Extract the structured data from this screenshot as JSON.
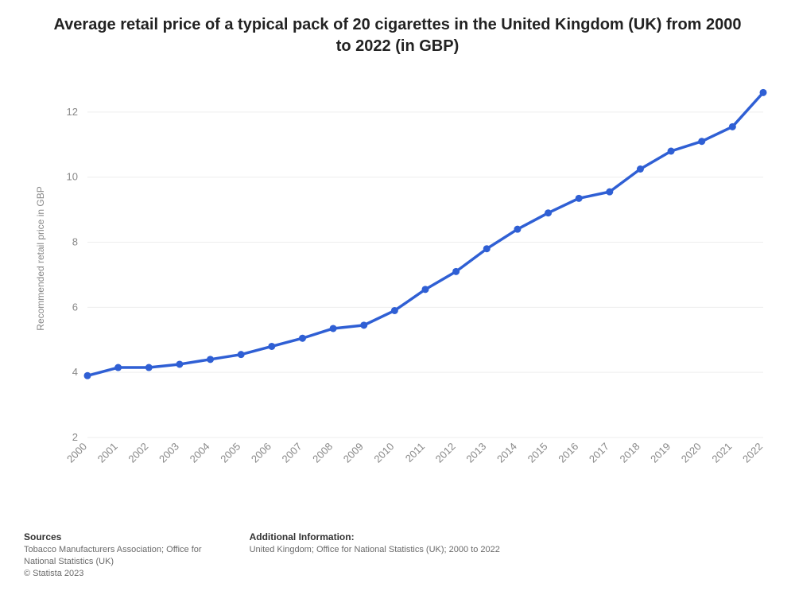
{
  "title": "Average retail price of a typical pack of 20 cigarettes in the United Kingdom (UK) from 2000 to 2022 (in GBP)",
  "chart": {
    "type": "line",
    "x_labels": [
      "2000",
      "2001",
      "2002",
      "2003",
      "2004",
      "2005",
      "2006",
      "2007",
      "2008",
      "2009",
      "2010",
      "2011",
      "2012",
      "2013",
      "2014",
      "2015",
      "2016",
      "2017",
      "2018",
      "2019",
      "2020",
      "2021",
      "2022"
    ],
    "values": [
      3.9,
      4.15,
      4.15,
      4.25,
      4.4,
      4.55,
      4.8,
      5.05,
      5.35,
      5.45,
      5.9,
      6.55,
      7.1,
      7.8,
      8.4,
      8.9,
      9.35,
      9.55,
      10.25,
      10.8,
      11.1,
      11.55,
      12.6
    ],
    "ylim": [
      2,
      13
    ],
    "yticks": [
      2,
      4,
      6,
      8,
      10,
      12
    ],
    "ylabel": "Recommended retail price in GBP",
    "line_color": "#2f5fd4",
    "line_width": 3.5,
    "marker_radius": 4.5,
    "marker_fill": "#2f5fd4",
    "background_color": "#ffffff",
    "grid_color": "#eeeeee",
    "axis_label_color": "#888888",
    "tick_font_size": 13,
    "ylabel_font_size": 12,
    "x_label_rotation": -45
  },
  "footer": {
    "sources_heading": "Sources",
    "sources_line1": "Tobacco Manufacturers Association; Office for",
    "sources_line2": "National Statistics (UK)",
    "copyright": "© Statista 2023",
    "addl_heading": "Additional Information:",
    "addl_line": "United Kingdom; Office for National Statistics (UK); 2000 to 2022"
  }
}
